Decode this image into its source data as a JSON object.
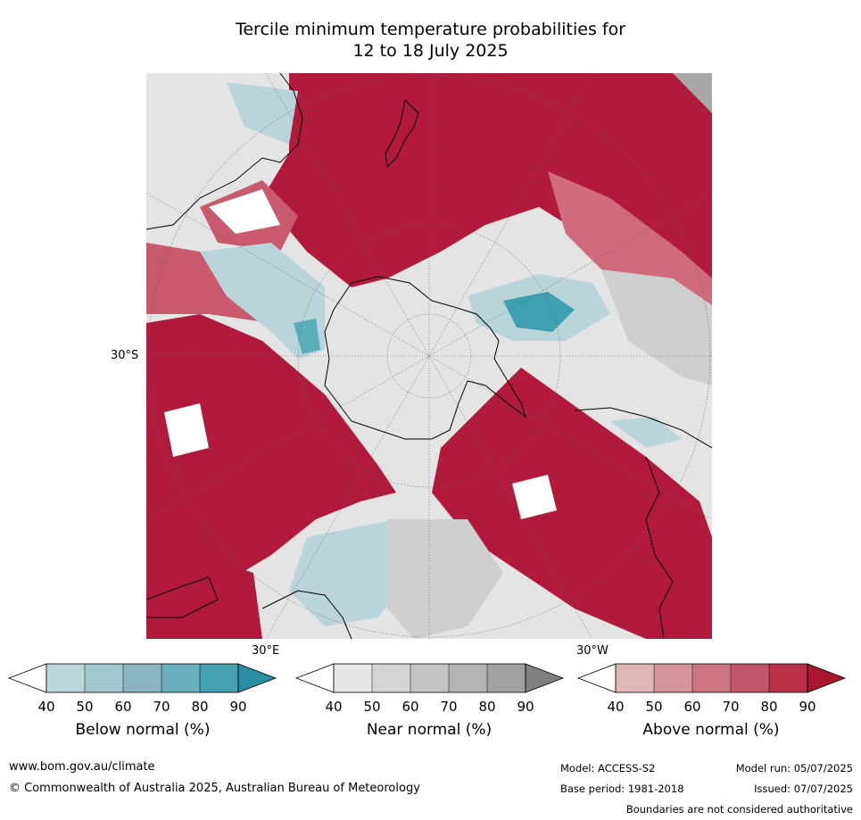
{
  "title_line1": "Tercile minimum temperature probabilities for",
  "title_line2": "12 to 18 July 2025",
  "map": {
    "lat_label": "30°S",
    "lon_label_east": "30°E",
    "lon_label_west": "30°W",
    "colors": {
      "above_strong": "#b11a3a",
      "above_mid": "#c95a6c",
      "above_light": "#e0a3ab",
      "near": "#d6d6d6",
      "below_light": "#b9d4db",
      "below_strong": "#3d9fb0",
      "missing": "#a7a7a7"
    }
  },
  "legends": [
    {
      "title": "Below normal (%)",
      "ticks": [
        "40",
        "50",
        "60",
        "70",
        "80",
        "90"
      ],
      "colors": [
        "#ffffff",
        "#bad5dc",
        "#a3c6cf",
        "#8ab6c3",
        "#68aebb",
        "#43a1b1",
        "#2b8ea5"
      ]
    },
    {
      "title": "Near normal (%)",
      "ticks": [
        "40",
        "50",
        "60",
        "70",
        "80",
        "90"
      ],
      "colors": [
        "#ffffff",
        "#e6e6e6",
        "#d5d5d5",
        "#c4c4c4",
        "#b4b4b4",
        "#a1a1a1",
        "#7f7f7f"
      ]
    },
    {
      "title": "Above normal (%)",
      "ticks": [
        "40",
        "50",
        "60",
        "70",
        "80",
        "90"
      ],
      "colors": [
        "#ffffff",
        "#e0b6bb",
        "#d5949d",
        "#cb7580",
        "#c3566a",
        "#b93048",
        "#a9172f"
      ]
    }
  ],
  "footer": {
    "website": "www.bom.gov.au/climate",
    "copyright": "© Commonwealth of Australia 2025, Australian Bureau of Meteorology",
    "model": "Model: ACCESS-S2",
    "base_period": "Base period: 1981-2018",
    "model_run": "Model run: 05/07/2025",
    "issued": "Issued: 07/07/2025",
    "disclaimer": "Boundaries are not considered authoritative"
  }
}
